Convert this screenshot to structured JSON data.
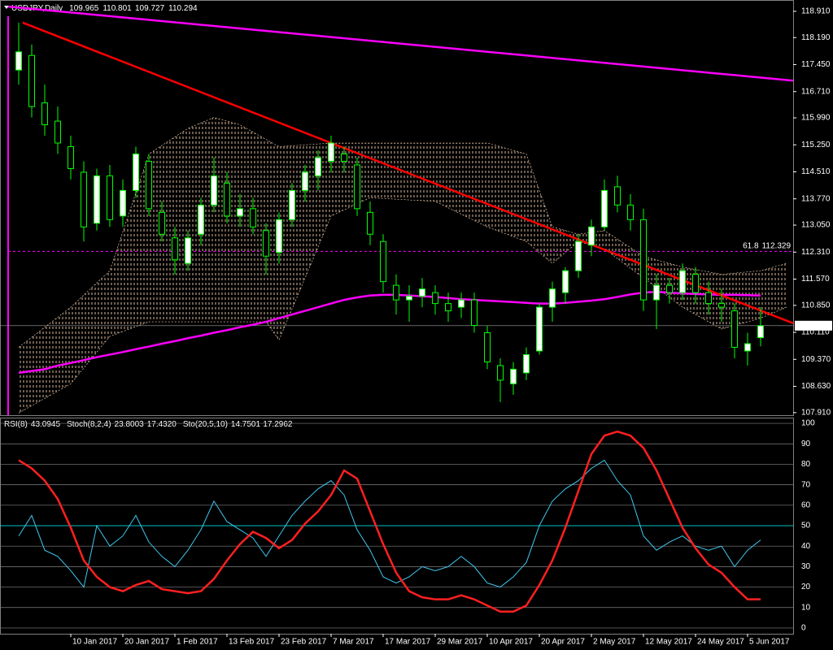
{
  "chart_data": [
    {
      "type": "candlestick",
      "title": "USDJPY,Daily",
      "ohlc": [
        109.965,
        110.801,
        109.727,
        110.294
      ],
      "categories": [
        null,
        null,
        null,
        null,
        "10 Jan 2017",
        null,
        null,
        null,
        "20 Jan 2017",
        null,
        null,
        null,
        "1 Feb 2017",
        null,
        null,
        null,
        "13 Feb 2017",
        null,
        null,
        null,
        "23 Feb 2017",
        null,
        null,
        null,
        "7 Mar 2017",
        null,
        null,
        null,
        "17 Mar 2017",
        null,
        null,
        null,
        "29 Mar 2017",
        null,
        null,
        null,
        "10 Apr 2017",
        null,
        null,
        null,
        "20 Apr 2017",
        null,
        null,
        null,
        "2 May 2017",
        null,
        null,
        null,
        "12 May 2017",
        null,
        null,
        null,
        "24 May 2017",
        null,
        null,
        null,
        "5 Jun 2017",
        null
      ],
      "open": [
        117.3,
        117.7,
        116.4,
        115.9,
        115.2,
        114.5,
        113.1,
        114.4,
        113.3,
        114.0,
        114.8,
        113.4,
        112.7,
        112.0,
        112.8,
        113.6,
        114.2,
        113.3,
        113.5,
        112.9,
        112.3,
        113.2,
        114.0,
        114.4,
        114.8,
        115.0,
        114.7,
        113.4,
        112.6,
        111.4,
        111.0,
        111.1,
        111.2,
        110.9,
        110.8,
        111.0,
        110.1,
        109.2,
        108.7,
        109.0,
        109.6,
        110.8,
        111.2,
        111.8,
        112.5,
        113.0,
        114.1,
        113.6,
        113.2,
        111.0,
        111.4,
        111.2,
        111.7,
        111.2,
        110.9,
        110.7,
        109.6,
        109.965
      ],
      "high": [
        118.6,
        118.0,
        116.9,
        116.3,
        115.5,
        114.8,
        114.6,
        114.7,
        114.3,
        115.2,
        115.0,
        113.7,
        113.0,
        112.9,
        113.8,
        114.9,
        114.5,
        113.9,
        113.8,
        113.1,
        113.4,
        114.2,
        114.7,
        115.1,
        115.5,
        115.2,
        114.9,
        113.7,
        112.8,
        111.7,
        111.4,
        111.6,
        111.4,
        111.2,
        111.2,
        111.2,
        110.3,
        109.4,
        109.3,
        109.7,
        110.9,
        111.5,
        111.9,
        112.8,
        113.2,
        114.3,
        114.4,
        113.9,
        113.5,
        111.7,
        111.6,
        112.0,
        111.9,
        111.5,
        111.3,
        110.9,
        110.1,
        110.801
      ],
      "low": [
        116.9,
        116.0,
        115.5,
        115.0,
        114.3,
        112.6,
        112.9,
        113.0,
        113.0,
        113.8,
        113.3,
        112.6,
        111.7,
        111.8,
        112.5,
        113.4,
        113.1,
        113.0,
        112.8,
        111.7,
        112.0,
        113.0,
        113.7,
        114.0,
        114.5,
        114.5,
        113.3,
        112.5,
        111.2,
        110.6,
        110.4,
        110.8,
        110.6,
        110.4,
        110.5,
        110.1,
        109.1,
        108.2,
        108.4,
        108.8,
        109.5,
        110.4,
        110.9,
        111.6,
        112.2,
        112.9,
        113.4,
        112.9,
        110.7,
        110.2,
        110.9,
        111.0,
        110.9,
        110.6,
        110.4,
        109.4,
        109.2,
        109.727
      ],
      "close": [
        117.8,
        116.3,
        115.8,
        115.3,
        114.6,
        113.0,
        114.4,
        113.2,
        114.0,
        115.0,
        113.5,
        112.8,
        112.1,
        112.7,
        113.6,
        114.4,
        113.3,
        113.5,
        113.0,
        112.2,
        113.2,
        114.0,
        114.5,
        114.9,
        115.3,
        114.8,
        113.5,
        112.8,
        111.5,
        111.0,
        111.1,
        111.3,
        110.9,
        110.7,
        111.0,
        110.3,
        109.3,
        108.8,
        109.1,
        109.5,
        110.8,
        111.3,
        111.8,
        112.6,
        113.0,
        114.0,
        113.6,
        113.2,
        111.0,
        111.4,
        111.2,
        111.8,
        111.2,
        110.9,
        110.8,
        109.7,
        109.8,
        110.294
      ],
      "up_color": "#ffffff",
      "down_color": "#000000",
      "wick_color": "#00ff00",
      "ma": {
        "color": "#ff00ff",
        "values": [
          109.0,
          109.05,
          109.1,
          109.2,
          109.27,
          109.35,
          109.43,
          109.5,
          109.57,
          109.65,
          109.72,
          109.8,
          109.87,
          109.95,
          110.02,
          110.1,
          110.17,
          110.25,
          110.32,
          110.4,
          110.5,
          110.6,
          110.7,
          110.8,
          110.9,
          111.0,
          111.07,
          111.12,
          111.14,
          111.14,
          111.12,
          111.1,
          111.08,
          111.05,
          111.02,
          111.0,
          110.98,
          110.96,
          110.94,
          110.92,
          110.9,
          110.9,
          110.92,
          110.95,
          110.98,
          111.02,
          111.08,
          111.15,
          111.2,
          111.22,
          111.2,
          111.18,
          111.16,
          111.15,
          111.14,
          111.14,
          111.13,
          111.12
        ]
      },
      "cloud": {
        "color": "#ffdab9",
        "x": [
          0,
          4,
          7,
          10,
          13,
          15,
          17,
          19,
          20,
          24,
          27,
          32,
          36,
          39,
          41,
          43,
          45,
          48,
          51,
          54,
          57,
          59
        ],
        "upper": [
          109.7,
          110.8,
          111.8,
          115.0,
          115.7,
          116.0,
          115.8,
          115.4,
          115.2,
          115.3,
          115.3,
          115.3,
          115.3,
          115.0,
          113.0,
          112.8,
          112.9,
          112.2,
          111.9,
          111.7,
          111.8,
          112.0
        ],
        "lower": [
          107.9,
          108.7,
          110.0,
          110.4,
          110.4,
          110.4,
          110.4,
          110.4,
          109.9,
          113.3,
          113.8,
          113.7,
          113.0,
          112.6,
          112.0,
          112.6,
          112.4,
          111.6,
          110.8,
          110.2,
          110.5,
          110.8
        ]
      },
      "trendlines": [
        {
          "color": "#ff0000",
          "x": [
            0.3,
            59.5
          ],
          "y": [
            118.6,
            110.36
          ]
        },
        {
          "color": "#ff00ff",
          "x": [
            -0.8,
            59.5
          ],
          "y": [
            119.04,
            117.01
          ]
        }
      ],
      "fibo": {
        "label": "61.8",
        "value": 112.329,
        "color": "#ff00ff"
      },
      "ylim": [
        107.84,
        119.22
      ],
      "yticks": [
        {
          "value": 118.91,
          "label": "118.910"
        },
        {
          "value": 118.19,
          "label": "118.190"
        },
        {
          "value": 117.45,
          "label": "117.450"
        },
        {
          "value": 116.71,
          "label": "116.710"
        },
        {
          "value": 115.99,
          "label": "115.990"
        },
        {
          "value": 115.25,
          "label": "115.250"
        },
        {
          "value": 114.51,
          "label": "114.510"
        },
        {
          "value": 113.77,
          "label": "113.770"
        },
        {
          "value": 113.05,
          "label": "113.050"
        },
        {
          "value": 112.31,
          "label": "112.310"
        },
        {
          "value": 111.57,
          "label": "111.570"
        },
        {
          "value": 110.85,
          "label": "110.850"
        },
        {
          "value": 110.11,
          "label": "110.110"
        },
        {
          "value": 109.37,
          "label": "109.370"
        },
        {
          "value": 108.63,
          "label": "108.630"
        },
        {
          "value": 107.91,
          "label": "107.910"
        }
      ]
    },
    {
      "type": "line",
      "series": [
        {
          "name": "RSI(8)",
          "legend_value": 43.0945,
          "color": "#40c8f0",
          "values": [
            45,
            55,
            38,
            35,
            28,
            20,
            50,
            40,
            45,
            55,
            42,
            35,
            30,
            38,
            48,
            62,
            52,
            48,
            44,
            35,
            45,
            55,
            62,
            68,
            72,
            65,
            48,
            38,
            25,
            22,
            25,
            30,
            28,
            30,
            35,
            30,
            22,
            20,
            25,
            32,
            50,
            62,
            68,
            72,
            78,
            82,
            72,
            65,
            45,
            38,
            42,
            45,
            40,
            38,
            40,
            30,
            38,
            43
          ]
        },
        {
          "name": "Sto(20,5,10)",
          "legend_values": [
            14.7501,
            17.2962
          ],
          "color": "#ff2020",
          "values": [
            82,
            78,
            72,
            63,
            49,
            33,
            25,
            20,
            18,
            21,
            23,
            19,
            18,
            17,
            18,
            24,
            33,
            41,
            47,
            44,
            39,
            43,
            51,
            57,
            65,
            77,
            73,
            57,
            41,
            27,
            18,
            15,
            14,
            14,
            16,
            14,
            11,
            8,
            8,
            11,
            21,
            33,
            49,
            67,
            85,
            94,
            96,
            94,
            88,
            77,
            63,
            49,
            39,
            31,
            27,
            20,
            14,
            14
          ]
        }
      ],
      "indicator": {
        "name": "Stoch(8,2,4)",
        "values": [
          23.8003,
          {
            "value": 17.432,
            "label": "17.4320"
          }
        ]
      },
      "level": {
        "value": 50,
        "color": "#00ffff"
      },
      "ylim": [
        -2.8,
        102.8
      ],
      "yticks": [
        0,
        10,
        20,
        30,
        40,
        50,
        60,
        70,
        80,
        90,
        100
      ]
    }
  ]
}
